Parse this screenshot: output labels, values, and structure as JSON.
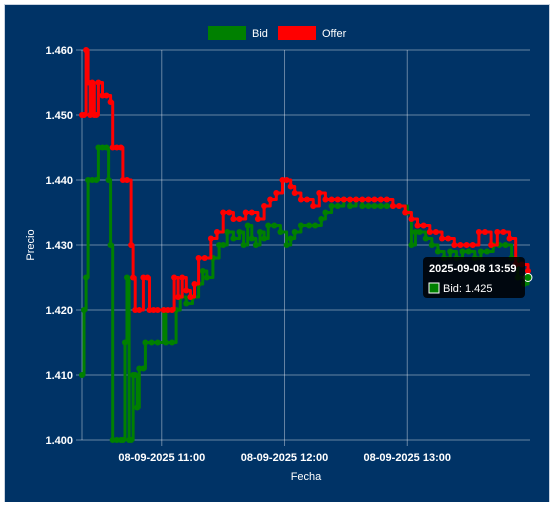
{
  "chart_data": {
    "type": "line",
    "title": "",
    "xlabel": "Fecha",
    "ylabel": "Precio",
    "background": "#003366",
    "grid": true,
    "legend_position": "top",
    "ylim": [
      1.4,
      1.46
    ],
    "y_ticks": [
      "1.400",
      "1.410",
      "1.420",
      "1.430",
      "1.440",
      "1.450",
      "1.460"
    ],
    "xlim": [
      "2025-09-08 10:21",
      "2025-09-08 14:00"
    ],
    "x_ticks": [
      {
        "time": "2025-09-08 11:00",
        "label": "08-09-2025 11:00"
      },
      {
        "time": "2025-09-08 12:00",
        "label": "08-09-2025 12:00"
      },
      {
        "time": "2025-09-08 13:00",
        "label": "08-09-2025 13:00"
      }
    ],
    "series": [
      {
        "name": "Bid",
        "color": "#008000",
        "points": [
          [
            "2025-09-08 10:21",
            1.41
          ],
          [
            "2025-09-08 10:22",
            1.42
          ],
          [
            "2025-09-08 10:23",
            1.425
          ],
          [
            "2025-09-08 10:24",
            1.44
          ],
          [
            "2025-09-08 10:26",
            1.44
          ],
          [
            "2025-09-08 10:28",
            1.44
          ],
          [
            "2025-09-08 10:29",
            1.445
          ],
          [
            "2025-09-08 10:31",
            1.445
          ],
          [
            "2025-09-08 10:33",
            1.445
          ],
          [
            "2025-09-08 10:34",
            1.44
          ],
          [
            "2025-09-08 10:35",
            1.43
          ],
          [
            "2025-09-08 10:36",
            1.4
          ],
          [
            "2025-09-08 10:38",
            1.4
          ],
          [
            "2025-09-08 10:40",
            1.4
          ],
          [
            "2025-09-08 10:41",
            1.4
          ],
          [
            "2025-09-08 10:42",
            1.415
          ],
          [
            "2025-09-08 10:43",
            1.425
          ],
          [
            "2025-09-08 10:44",
            1.4
          ],
          [
            "2025-09-08 10:45",
            1.4
          ],
          [
            "2025-09-08 10:46",
            1.41
          ],
          [
            "2025-09-08 10:47",
            1.41
          ],
          [
            "2025-09-08 10:48",
            1.405
          ],
          [
            "2025-09-08 10:49",
            1.411
          ],
          [
            "2025-09-08 10:51",
            1.411
          ],
          [
            "2025-09-08 10:52",
            1.415
          ],
          [
            "2025-09-08 10:55",
            1.415
          ],
          [
            "2025-09-08 10:58",
            1.415
          ],
          [
            "2025-09-08 11:01",
            1.42
          ],
          [
            "2025-09-08 11:02",
            1.415
          ],
          [
            "2025-09-08 11:05",
            1.415
          ],
          [
            "2025-09-08 11:07",
            1.42
          ],
          [
            "2025-09-08 11:09",
            1.422
          ],
          [
            "2025-09-08 11:12",
            1.421
          ],
          [
            "2025-09-08 11:15",
            1.422
          ],
          [
            "2025-09-08 11:18",
            1.424
          ],
          [
            "2025-09-08 11:20",
            1.426
          ],
          [
            "2025-09-08 11:22",
            1.425
          ],
          [
            "2025-09-08 11:25",
            1.428
          ],
          [
            "2025-09-08 11:28",
            1.43
          ],
          [
            "2025-09-08 11:30",
            1.43
          ],
          [
            "2025-09-08 11:32",
            1.432
          ],
          [
            "2025-09-08 11:35",
            1.431
          ],
          [
            "2025-09-08 11:38",
            1.432
          ],
          [
            "2025-09-08 11:40",
            1.43
          ],
          [
            "2025-09-08 11:42",
            1.433
          ],
          [
            "2025-09-08 11:44",
            1.431
          ],
          [
            "2025-09-08 11:46",
            1.43
          ],
          [
            "2025-09-08 11:48",
            1.432
          ],
          [
            "2025-09-08 11:50",
            1.431
          ],
          [
            "2025-09-08 11:52",
            1.433
          ],
          [
            "2025-09-08 11:55",
            1.433
          ],
          [
            "2025-09-08 11:58",
            1.432
          ],
          [
            "2025-09-08 12:01",
            1.43
          ],
          [
            "2025-09-08 12:03",
            1.431
          ],
          [
            "2025-09-08 12:05",
            1.432
          ],
          [
            "2025-09-08 12:08",
            1.433
          ],
          [
            "2025-09-08 12:12",
            1.433
          ],
          [
            "2025-09-08 12:15",
            1.433
          ],
          [
            "2025-09-08 12:18",
            1.434
          ],
          [
            "2025-09-08 12:20",
            1.435
          ],
          [
            "2025-09-08 12:23",
            1.436
          ],
          [
            "2025-09-08 12:26",
            1.436
          ],
          [
            "2025-09-08 12:29",
            1.437
          ],
          [
            "2025-09-08 12:32",
            1.436
          ],
          [
            "2025-09-08 12:35",
            1.437
          ],
          [
            "2025-09-08 12:38",
            1.436
          ],
          [
            "2025-09-08 12:41",
            1.436
          ],
          [
            "2025-09-08 12:44",
            1.436
          ],
          [
            "2025-09-08 12:47",
            1.436
          ],
          [
            "2025-09-08 12:50",
            1.436
          ],
          [
            "2025-09-08 12:53",
            1.436
          ],
          [
            "2025-09-08 12:56",
            1.436
          ],
          [
            "2025-09-08 13:00",
            1.435
          ],
          [
            "2025-09-08 13:02",
            1.43
          ],
          [
            "2025-09-08 13:04",
            1.432
          ],
          [
            "2025-09-08 13:06",
            1.432
          ],
          [
            "2025-09-08 13:09",
            1.431
          ],
          [
            "2025-09-08 13:12",
            1.43
          ],
          [
            "2025-09-08 13:15",
            1.429
          ],
          [
            "2025-09-08 13:18",
            1.428
          ],
          [
            "2025-09-08 13:21",
            1.429
          ],
          [
            "2025-09-08 13:24",
            1.428
          ],
          [
            "2025-09-08 13:27",
            1.429
          ],
          [
            "2025-09-08 13:30",
            1.429
          ],
          [
            "2025-09-08 13:33",
            1.428
          ],
          [
            "2025-09-08 13:36",
            1.429
          ],
          [
            "2025-09-08 13:39",
            1.429
          ],
          [
            "2025-09-08 13:42",
            1.43
          ],
          [
            "2025-09-08 13:45",
            1.43
          ],
          [
            "2025-09-08 13:48",
            1.43
          ],
          [
            "2025-09-08 13:51",
            1.428
          ],
          [
            "2025-09-08 13:54",
            1.425
          ],
          [
            "2025-09-08 13:57",
            1.424
          ],
          [
            "2025-09-08 13:59",
            1.425
          ]
        ]
      },
      {
        "name": "Offer",
        "color": "#ff0000",
        "points": [
          [
            "2025-09-08 10:21",
            1.45
          ],
          [
            "2025-09-08 10:22",
            1.45
          ],
          [
            "2025-09-08 10:23",
            1.46
          ],
          [
            "2025-09-08 10:24",
            1.455
          ],
          [
            "2025-09-08 10:25",
            1.45
          ],
          [
            "2025-09-08 10:26",
            1.455
          ],
          [
            "2025-09-08 10:27",
            1.45
          ],
          [
            "2025-09-08 10:28",
            1.45
          ],
          [
            "2025-09-08 10:29",
            1.455
          ],
          [
            "2025-09-08 10:31",
            1.453
          ],
          [
            "2025-09-08 10:33",
            1.453
          ],
          [
            "2025-09-08 10:35",
            1.452
          ],
          [
            "2025-09-08 10:36",
            1.445
          ],
          [
            "2025-09-08 10:38",
            1.445
          ],
          [
            "2025-09-08 10:40",
            1.445
          ],
          [
            "2025-09-08 10:41",
            1.44
          ],
          [
            "2025-09-08 10:43",
            1.44
          ],
          [
            "2025-09-08 10:45",
            1.43
          ],
          [
            "2025-09-08 10:46",
            1.425
          ],
          [
            "2025-09-08 10:47",
            1.42
          ],
          [
            "2025-09-08 10:49",
            1.42
          ],
          [
            "2025-09-08 10:51",
            1.425
          ],
          [
            "2025-09-08 10:53",
            1.425
          ],
          [
            "2025-09-08 10:54",
            1.42
          ],
          [
            "2025-09-08 10:56",
            1.42
          ],
          [
            "2025-09-08 10:58",
            1.42
          ],
          [
            "2025-09-08 11:01",
            1.42
          ],
          [
            "2025-09-08 11:03",
            1.42
          ],
          [
            "2025-09-08 11:05",
            1.42
          ],
          [
            "2025-09-08 11:06",
            1.425
          ],
          [
            "2025-09-08 11:08",
            1.422
          ],
          [
            "2025-09-08 11:10",
            1.425
          ],
          [
            "2025-09-08 11:12",
            1.423
          ],
          [
            "2025-09-08 11:14",
            1.422
          ],
          [
            "2025-09-08 11:16",
            1.424
          ],
          [
            "2025-09-08 11:18",
            1.428
          ],
          [
            "2025-09-08 11:21",
            1.428
          ],
          [
            "2025-09-08 11:24",
            1.431
          ],
          [
            "2025-09-08 11:27",
            1.432
          ],
          [
            "2025-09-08 11:30",
            1.435
          ],
          [
            "2025-09-08 11:33",
            1.435
          ],
          [
            "2025-09-08 11:35",
            1.434
          ],
          [
            "2025-09-08 11:38",
            1.434
          ],
          [
            "2025-09-08 11:41",
            1.435
          ],
          [
            "2025-09-08 11:44",
            1.435
          ],
          [
            "2025-09-08 11:47",
            1.434
          ],
          [
            "2025-09-08 11:50",
            1.436
          ],
          [
            "2025-09-08 11:53",
            1.437
          ],
          [
            "2025-09-08 11:56",
            1.438
          ],
          [
            "2025-09-08 11:59",
            1.44
          ],
          [
            "2025-09-08 12:01",
            1.44
          ],
          [
            "2025-09-08 12:03",
            1.439
          ],
          [
            "2025-09-08 12:05",
            1.438
          ],
          [
            "2025-09-08 12:08",
            1.437
          ],
          [
            "2025-09-08 12:11",
            1.437
          ],
          [
            "2025-09-08 12:14",
            1.436
          ],
          [
            "2025-09-08 12:17",
            1.438
          ],
          [
            "2025-09-08 12:20",
            1.437
          ],
          [
            "2025-09-08 12:23",
            1.437
          ],
          [
            "2025-09-08 12:26",
            1.437
          ],
          [
            "2025-09-08 12:29",
            1.437
          ],
          [
            "2025-09-08 12:32",
            1.437
          ],
          [
            "2025-09-08 12:35",
            1.437
          ],
          [
            "2025-09-08 12:38",
            1.437
          ],
          [
            "2025-09-08 12:41",
            1.437
          ],
          [
            "2025-09-08 12:44",
            1.437
          ],
          [
            "2025-09-08 12:47",
            1.437
          ],
          [
            "2025-09-08 12:50",
            1.437
          ],
          [
            "2025-09-08 12:53",
            1.436
          ],
          [
            "2025-09-08 12:56",
            1.436
          ],
          [
            "2025-09-08 12:59",
            1.435
          ],
          [
            "2025-09-08 13:02",
            1.434
          ],
          [
            "2025-09-08 13:05",
            1.433
          ],
          [
            "2025-09-08 13:08",
            1.433
          ],
          [
            "2025-09-08 13:11",
            1.432
          ],
          [
            "2025-09-08 13:14",
            1.432
          ],
          [
            "2025-09-08 13:17",
            1.431
          ],
          [
            "2025-09-08 13:20",
            1.431
          ],
          [
            "2025-09-08 13:23",
            1.43
          ],
          [
            "2025-09-08 13:26",
            1.43
          ],
          [
            "2025-09-08 13:29",
            1.43
          ],
          [
            "2025-09-08 13:32",
            1.43
          ],
          [
            "2025-09-08 13:35",
            1.432
          ],
          [
            "2025-09-08 13:38",
            1.432
          ],
          [
            "2025-09-08 13:41",
            1.43
          ],
          [
            "2025-09-08 13:44",
            1.432
          ],
          [
            "2025-09-08 13:47",
            1.432
          ],
          [
            "2025-09-08 13:50",
            1.431
          ],
          [
            "2025-09-08 13:53",
            1.427
          ],
          [
            "2025-09-08 13:56",
            1.427
          ],
          [
            "2025-09-08 13:59",
            1.426
          ]
        ]
      }
    ],
    "tooltip": {
      "title": "2025-09-08 13:59",
      "body": "Bid: 1.425",
      "series": "Bid",
      "time": "2025-09-08 13:59",
      "value": 1.425
    }
  }
}
